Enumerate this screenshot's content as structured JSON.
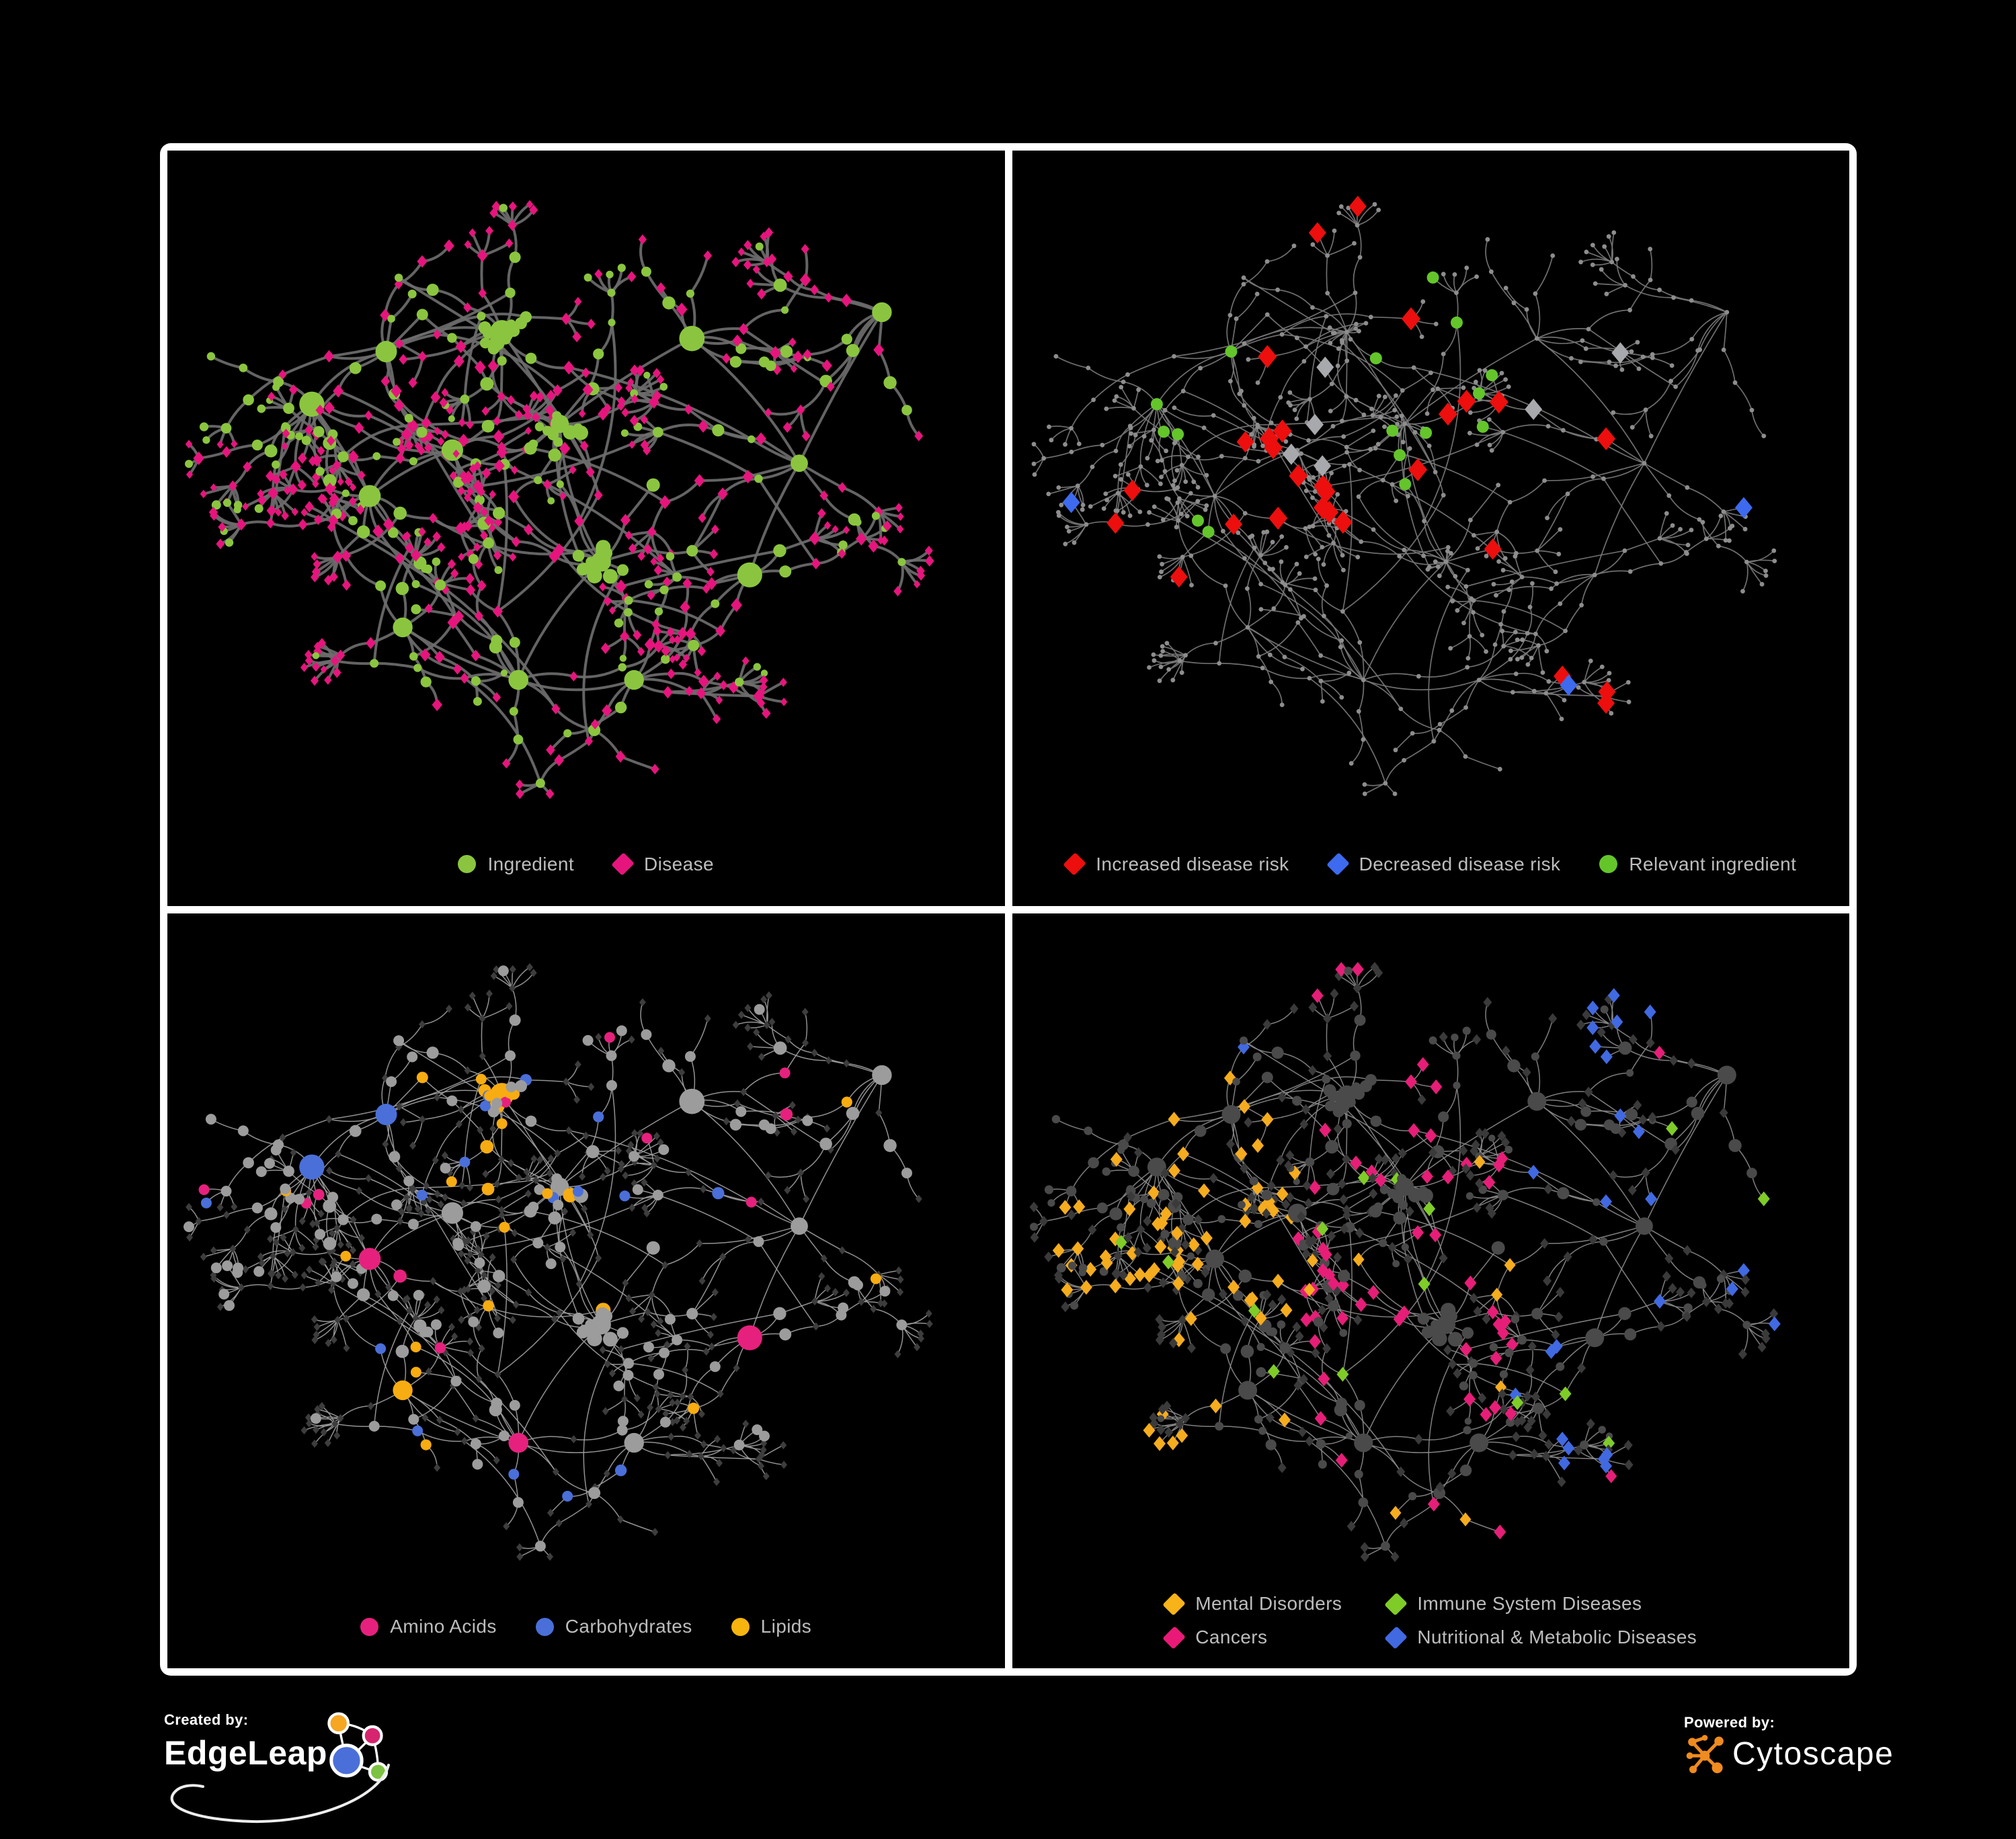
{
  "page": {
    "background": "#000000",
    "panel_border": "#FFFFFF",
    "panel_background": "#000000",
    "legend_text_color": "#BDBDBD"
  },
  "panels": [
    {
      "id": "ingredient-disease",
      "legend": [
        {
          "shape": "circle",
          "color": "#8BC53F",
          "label": "Ingredient"
        },
        {
          "shape": "diamond",
          "color": "#E6157D",
          "label": "Disease"
        }
      ],
      "style": {
        "edge_color": "#6C6C6C",
        "edge_width": 4,
        "circle_color": "#8BC53F",
        "diamond_color": "#E6157D"
      }
    },
    {
      "id": "disease-risk",
      "legend": [
        {
          "shape": "diamond",
          "color": "#ED0E0E",
          "label": "Increased disease risk"
        },
        {
          "shape": "diamond",
          "color": "#3D6AEF",
          "label": "Decreased disease risk"
        },
        {
          "shape": "circle",
          "color": "#64C52B",
          "label": "Relevant ingredient"
        }
      ],
      "style": {
        "edge_color": "#787878",
        "edge_width": 1.7,
        "dim_color": "#8D8D8D",
        "red": "#ED0E0E",
        "blue": "#3D6AEF",
        "silver": "#A7A9AC",
        "green": "#64C52B"
      }
    },
    {
      "id": "nutrient-classes",
      "legend": [
        {
          "shape": "circle",
          "color": "#E6217D",
          "label": "Amino Acids"
        },
        {
          "shape": "circle",
          "color": "#4A6FD9",
          "label": "Carbohydrates"
        },
        {
          "shape": "circle",
          "color": "#F7B40E",
          "label": "Lipids"
        }
      ],
      "style": {
        "edge_color": "#9E9E9E",
        "edge_width": 1.5,
        "circle_default": "#9C9C9C",
        "diamond_color": "#3D3D3D",
        "pink": "#E6217D",
        "blue": "#4A6FD9",
        "orange": "#F7AC12"
      }
    },
    {
      "id": "disease-classes",
      "legend": [
        {
          "shape": "diamond",
          "color": "#F7B319",
          "label": "Mental Disorders"
        },
        {
          "shape": "diamond",
          "color": "#7FCC28",
          "label": "Immune System Diseases"
        },
        {
          "shape": "diamond",
          "color": "#E91A77",
          "label": "Cancers"
        },
        {
          "shape": "diamond",
          "color": "#4169E1",
          "label": "Nutritional & Metabolic Diseases"
        }
      ],
      "style": {
        "edge_color": "#8A8A8A",
        "edge_width": 1.5,
        "circle_color": "#4A4A4A",
        "diamond_default": "#3A3A3A",
        "orange": "#F5AC1E",
        "green": "#7FCC28",
        "pink": "#E61E78",
        "blue": "#4169E1"
      }
    }
  ],
  "footer": {
    "created_by": "Created by:",
    "creator_brand": "EdgeLeap",
    "powered_by": "Powered by:",
    "powered_brand": "Cytoscape",
    "edgeleap_logo_colors": {
      "orange": "#F5A623",
      "pink": "#D6246E",
      "blue": "#4A6FD9",
      "green": "#7DC242"
    },
    "cytoscape_orange": "#EF8B1F"
  }
}
